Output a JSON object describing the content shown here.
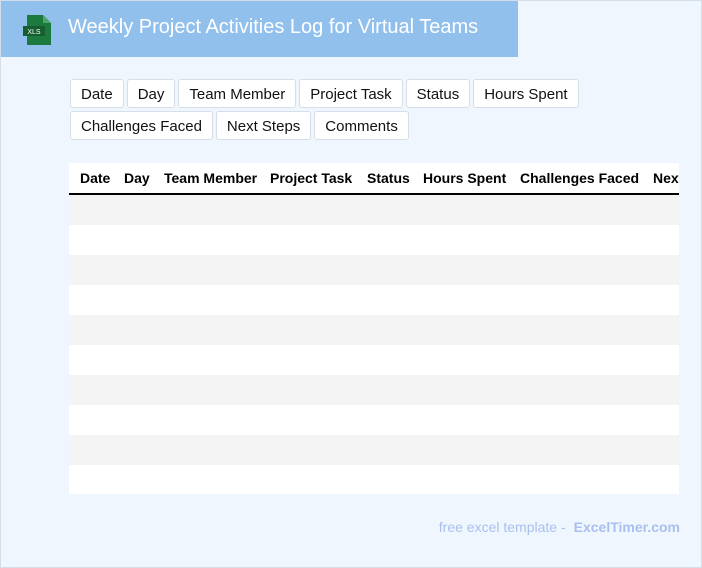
{
  "header": {
    "title": "Weekly Project Activities Log for Virtual Teams",
    "icon": "xls-file-icon",
    "icon_label": "XLS",
    "color": "#92c0ec"
  },
  "field_chips": [
    "Date",
    "Day",
    "Team Member",
    "Project Task",
    "Status",
    "Hours Spent",
    "Challenges Faced",
    "Next Steps",
    "Comments"
  ],
  "table": {
    "columns": [
      "Date",
      "Day",
      "Team Member",
      "Project Task",
      "Status",
      "Hours Spent",
      "Challenges Faced",
      "Next Steps"
    ],
    "row_count": 10
  },
  "footer": {
    "prefix": "free excel template -",
    "brand": "ExcelTimer.com"
  }
}
